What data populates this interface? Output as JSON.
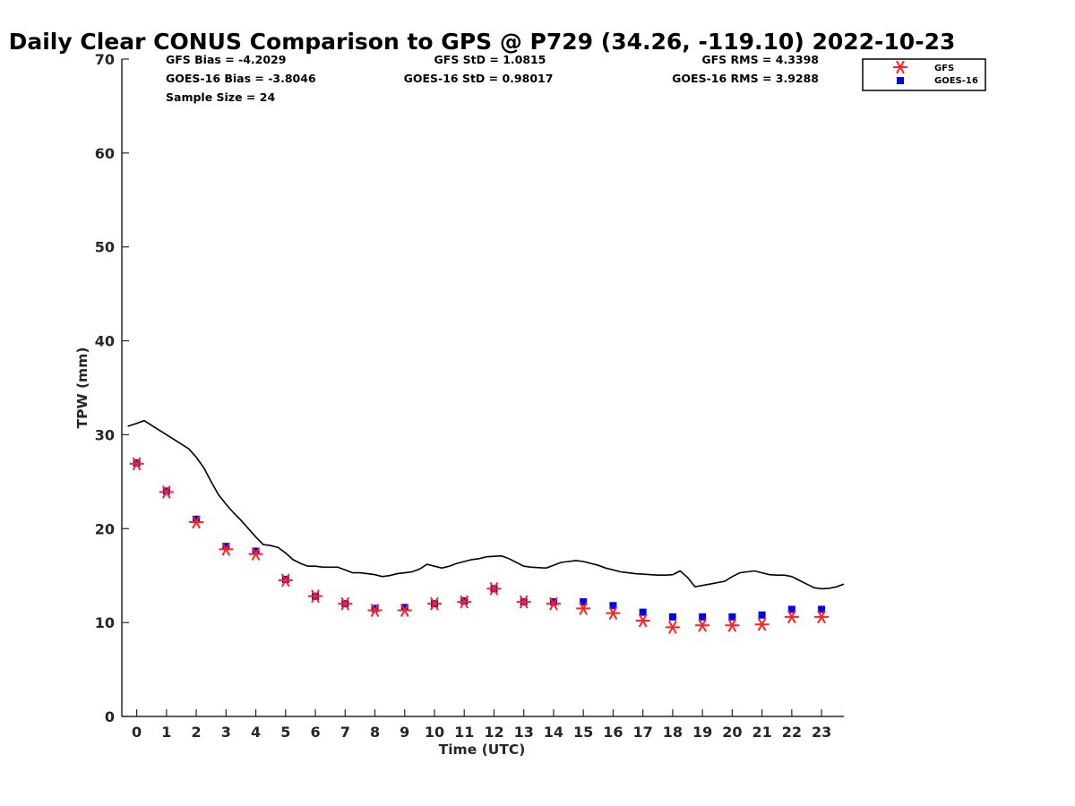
{
  "chart_data": {
    "type": "scatter",
    "title": "Daily Clear CONUS Comparison to GPS @ P729 (34.26, -119.10) 2022-10-23",
    "xlabel": "Time (UTC)",
    "ylabel": "TPW (mm)",
    "xlim": [
      -0.5,
      23.75
    ],
    "ylim": [
      0,
      70
    ],
    "xticks": [
      0,
      1,
      2,
      3,
      4,
      5,
      6,
      7,
      8,
      9,
      10,
      11,
      12,
      13,
      14,
      15,
      16,
      17,
      18,
      19,
      20,
      21,
      22,
      23
    ],
    "yticks": [
      0,
      10,
      20,
      30,
      40,
      50,
      60,
      70
    ],
    "grid": false,
    "legend_position": "top-right",
    "stats": {
      "gfs_bias": "GFS Bias = -4.2029",
      "goes_bias": "GOES-16 Bias = -3.8046",
      "sample_size": "Sample Size = 24",
      "gfs_std": "GFS StD = 1.0815",
      "goes_std": "GOES-16 StD = 0.98017",
      "gfs_rms": "GFS RMS = 4.3398",
      "goes_rms": "GOES-16 RMS = 3.9288"
    },
    "gps_line": {
      "x": [
        -0.3,
        0,
        0.25,
        0.5,
        0.75,
        1,
        1.25,
        1.5,
        1.75,
        2,
        2.25,
        2.5,
        2.75,
        3,
        3.25,
        3.5,
        3.75,
        4,
        4.25,
        4.5,
        4.75,
        5,
        5.25,
        5.5,
        5.75,
        6,
        6.25,
        6.5,
        6.75,
        7,
        7.25,
        7.5,
        7.75,
        8,
        8.25,
        8.5,
        8.75,
        9,
        9.25,
        9.5,
        9.75,
        10,
        10.25,
        10.5,
        10.75,
        11,
        11.25,
        11.5,
        11.75,
        12,
        12.25,
        12.5,
        12.75,
        13,
        13.25,
        13.5,
        13.75,
        14,
        14.25,
        14.5,
        14.75,
        15,
        15.25,
        15.5,
        15.75,
        16,
        16.25,
        16.5,
        16.75,
        17,
        17.25,
        17.5,
        17.75,
        18,
        18.25,
        18.5,
        18.75,
        19,
        19.25,
        19.5,
        19.75,
        20,
        20.25,
        20.5,
        20.75,
        21,
        21.25,
        21.5,
        21.75,
        22,
        22.25,
        22.5,
        22.75,
        23,
        23.25,
        23.5,
        23.75
      ],
      "y": [
        30.9,
        31.2,
        31.5,
        31.0,
        30.5,
        30.0,
        29.5,
        29.0,
        28.5,
        27.6,
        26.5,
        25.0,
        23.6,
        22.6,
        21.7,
        20.9,
        20.0,
        19.1,
        18.3,
        18.2,
        18.0,
        17.4,
        16.7,
        16.3,
        16.0,
        16.0,
        15.9,
        15.9,
        15.9,
        15.6,
        15.3,
        15.3,
        15.2,
        15.1,
        14.9,
        15.0,
        15.2,
        15.3,
        15.4,
        15.7,
        16.2,
        16.0,
        15.8,
        16.0,
        16.3,
        16.5,
        16.7,
        16.8,
        17.0,
        17.05,
        17.1,
        16.8,
        16.4,
        16.0,
        15.9,
        15.85,
        15.8,
        16.1,
        16.4,
        16.5,
        16.6,
        16.5,
        16.3,
        16.1,
        15.8,
        15.6,
        15.4,
        15.3,
        15.2,
        15.15,
        15.1,
        15.05,
        15.05,
        15.1,
        15.5,
        14.8,
        13.8,
        13.95,
        14.1,
        14.25,
        14.4,
        14.9,
        15.3,
        15.4,
        15.5,
        15.3,
        15.1,
        15.05,
        15.05,
        14.9,
        14.5,
        14.1,
        13.7,
        13.6,
        13.65,
        13.8,
        14.1
      ]
    },
    "series": [
      {
        "name": "GFS",
        "marker": "asterisk",
        "color": "#ff2020",
        "x": [
          0,
          1,
          2,
          3,
          4,
          5,
          6,
          7,
          8,
          9,
          10,
          11,
          12,
          13,
          14,
          15,
          16,
          17,
          18,
          19,
          20,
          21,
          22,
          23
        ],
        "y": [
          26.9,
          23.9,
          20.7,
          17.8,
          17.3,
          14.5,
          12.8,
          12.0,
          11.3,
          11.3,
          12.0,
          12.2,
          13.6,
          12.2,
          12.0,
          11.5,
          11.0,
          10.2,
          9.5,
          9.7,
          9.7,
          9.8,
          10.6,
          10.6
        ]
      },
      {
        "name": "GOES-16",
        "marker": "square",
        "color": "#0000ee",
        "x": [
          0,
          1,
          2,
          3,
          4,
          5,
          6,
          7,
          8,
          9,
          10,
          11,
          12,
          13,
          14,
          15,
          16,
          17,
          18,
          19,
          20,
          21,
          22,
          23
        ],
        "y": [
          27.0,
          24.0,
          21.0,
          18.1,
          17.6,
          14.6,
          12.8,
          12.0,
          11.5,
          11.6,
          12.0,
          12.3,
          13.6,
          12.2,
          12.2,
          12.2,
          11.8,
          11.1,
          10.6,
          10.6,
          10.6,
          10.8,
          11.4,
          11.4
        ]
      }
    ]
  }
}
